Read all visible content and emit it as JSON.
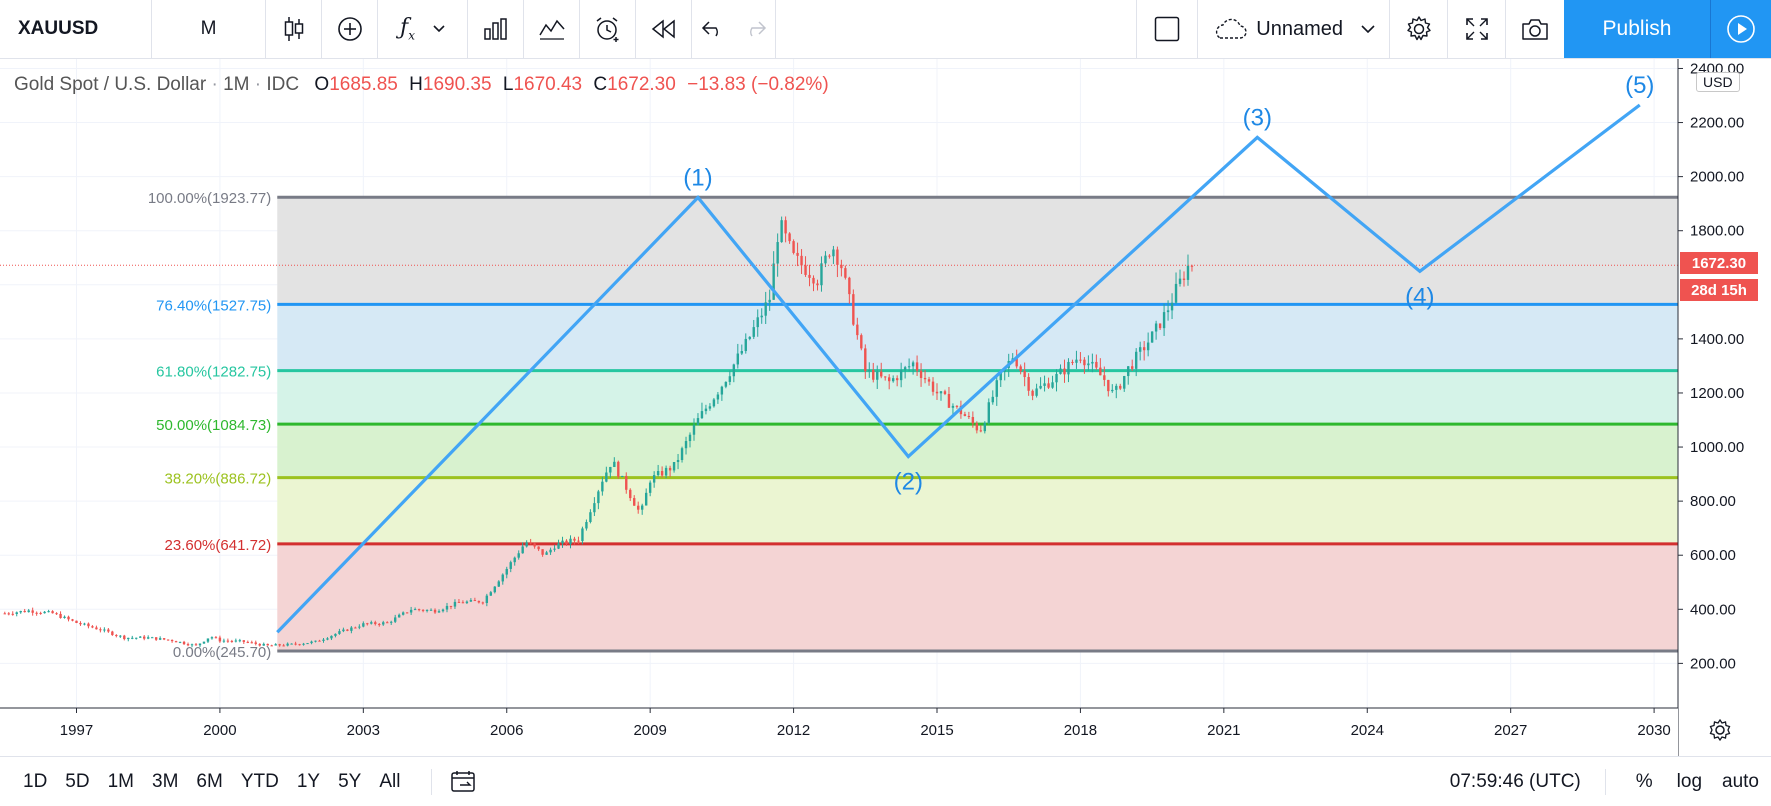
{
  "toolbar": {
    "symbol": "XAUUSD",
    "interval": "M",
    "layout_name": "Unnamed",
    "publish_label": "Publish"
  },
  "legend": {
    "name": "Gold Spot / U.S. Dollar",
    "interval": "1M",
    "source": "IDC",
    "o_label": "O",
    "o": "1685.85",
    "h_label": "H",
    "h": "1690.35",
    "l_label": "L",
    "l": "1670.43",
    "c_label": "C",
    "c": "1672.30",
    "change": "−13.83 (−0.82%)"
  },
  "price_axis": {
    "currency": "USD",
    "ticks": [
      "2400.00",
      "2200.00",
      "2000.00",
      "1800.00",
      "1400.00",
      "1200.00",
      "1000.00",
      "800.00",
      "600.00",
      "400.00",
      "200.00"
    ],
    "last_price": "1672.30",
    "countdown": "28d 15h"
  },
  "time_axis": {
    "ticks": [
      "1997",
      "2000",
      "2003",
      "2006",
      "2009",
      "2012",
      "2015",
      "2018",
      "2021",
      "2024",
      "2027",
      "2030"
    ]
  },
  "chart_data": {
    "type": "line",
    "symbol": "XAUUSD",
    "fibonacci_levels": [
      {
        "label": "100.00%(1923.77)",
        "ratio": 1.0,
        "price": 1923.77,
        "color": "#787b86"
      },
      {
        "label": "76.40%(1527.75)",
        "ratio": 0.764,
        "price": 1527.75,
        "color": "#2196f3"
      },
      {
        "label": "61.80%(1282.75)",
        "ratio": 0.618,
        "price": 1282.75,
        "color": "#26c6a0"
      },
      {
        "label": "50.00%(1084.73)",
        "ratio": 0.5,
        "price": 1084.73,
        "color": "#2eb82e"
      },
      {
        "label": "38.20%(886.72)",
        "ratio": 0.382,
        "price": 886.72,
        "color": "#9cc21f"
      },
      {
        "label": "23.60%(641.72)",
        "ratio": 0.236,
        "price": 641.72,
        "color": "#d32f2f"
      },
      {
        "label": "0.00%(245.70)",
        "ratio": 0.0,
        "price": 245.7,
        "color": "#787b86"
      }
    ],
    "elliott_waves": [
      {
        "label": "",
        "year": 2001.2,
        "price": 315
      },
      {
        "label": "(1)",
        "year": 2010.0,
        "price": 1923
      },
      {
        "label": "(2)",
        "year": 2014.4,
        "price": 965
      },
      {
        "label": "(3)",
        "year": 2021.7,
        "price": 2145
      },
      {
        "label": "(4)",
        "year": 2025.1,
        "price": 1650
      },
      {
        "label": "(5)",
        "year": 2029.7,
        "price": 2265
      }
    ],
    "price_series": [
      {
        "year": 1995.5,
        "price": 385
      },
      {
        "year": 1996.0,
        "price": 395
      },
      {
        "year": 1996.5,
        "price": 385
      },
      {
        "year": 1997.0,
        "price": 350
      },
      {
        "year": 1997.5,
        "price": 325
      },
      {
        "year": 1998.0,
        "price": 295
      },
      {
        "year": 1998.5,
        "price": 295
      },
      {
        "year": 1999.0,
        "price": 285
      },
      {
        "year": 1999.5,
        "price": 265
      },
      {
        "year": 1999.8,
        "price": 300
      },
      {
        "year": 2000.0,
        "price": 285
      },
      {
        "year": 2000.5,
        "price": 280
      },
      {
        "year": 2001.0,
        "price": 265
      },
      {
        "year": 2001.5,
        "price": 270
      },
      {
        "year": 2002.0,
        "price": 280
      },
      {
        "year": 2002.5,
        "price": 315
      },
      {
        "year": 2003.0,
        "price": 345
      },
      {
        "year": 2003.5,
        "price": 350
      },
      {
        "year": 2004.0,
        "price": 400
      },
      {
        "year": 2004.5,
        "price": 395
      },
      {
        "year": 2005.0,
        "price": 425
      },
      {
        "year": 2005.5,
        "price": 430
      },
      {
        "year": 2006.0,
        "price": 550
      },
      {
        "year": 2006.4,
        "price": 650
      },
      {
        "year": 2006.8,
        "price": 600
      },
      {
        "year": 2007.0,
        "price": 635
      },
      {
        "year": 2007.5,
        "price": 660
      },
      {
        "year": 2008.0,
        "price": 880
      },
      {
        "year": 2008.2,
        "price": 950
      },
      {
        "year": 2008.8,
        "price": 750
      },
      {
        "year": 2009.0,
        "price": 880
      },
      {
        "year": 2009.5,
        "price": 930
      },
      {
        "year": 2010.0,
        "price": 1100
      },
      {
        "year": 2010.5,
        "price": 1230
      },
      {
        "year": 2011.0,
        "price": 1380
      },
      {
        "year": 2011.5,
        "price": 1550
      },
      {
        "year": 2011.7,
        "price": 1830
      },
      {
        "year": 2012.0,
        "price": 1700
      },
      {
        "year": 2012.5,
        "price": 1620
      },
      {
        "year": 2012.8,
        "price": 1750
      },
      {
        "year": 2013.0,
        "price": 1670
      },
      {
        "year": 2013.5,
        "price": 1280
      },
      {
        "year": 2014.0,
        "price": 1240
      },
      {
        "year": 2014.5,
        "price": 1310
      },
      {
        "year": 2015.0,
        "price": 1200
      },
      {
        "year": 2015.5,
        "price": 1130
      },
      {
        "year": 2015.9,
        "price": 1060
      },
      {
        "year": 2016.3,
        "price": 1250
      },
      {
        "year": 2016.6,
        "price": 1340
      },
      {
        "year": 2017.0,
        "price": 1200
      },
      {
        "year": 2017.5,
        "price": 1260
      },
      {
        "year": 2018.0,
        "price": 1340
      },
      {
        "year": 2018.5,
        "price": 1250
      },
      {
        "year": 2018.7,
        "price": 1190
      },
      {
        "year": 2019.0,
        "price": 1290
      },
      {
        "year": 2019.5,
        "price": 1410
      },
      {
        "year": 2019.8,
        "price": 1500
      },
      {
        "year": 2020.0,
        "price": 1580
      },
      {
        "year": 2020.3,
        "price": 1685
      },
      {
        "year": 2020.35,
        "price": 1672.3
      }
    ],
    "x_range": [
      1995.4,
      2030.5
    ],
    "y_range": [
      35,
      2435
    ],
    "grid": true
  },
  "bottom": {
    "ranges": [
      "1D",
      "5D",
      "1M",
      "3M",
      "6M",
      "YTD",
      "1Y",
      "5Y",
      "All"
    ],
    "time": "07:59:46 (UTC)",
    "percent_label": "%",
    "log_label": "log",
    "auto_label": "auto"
  },
  "colors": {
    "accent": "#2196f3",
    "up": "#26a69a",
    "down": "#ef5350",
    "wave": "#42a5f5"
  }
}
